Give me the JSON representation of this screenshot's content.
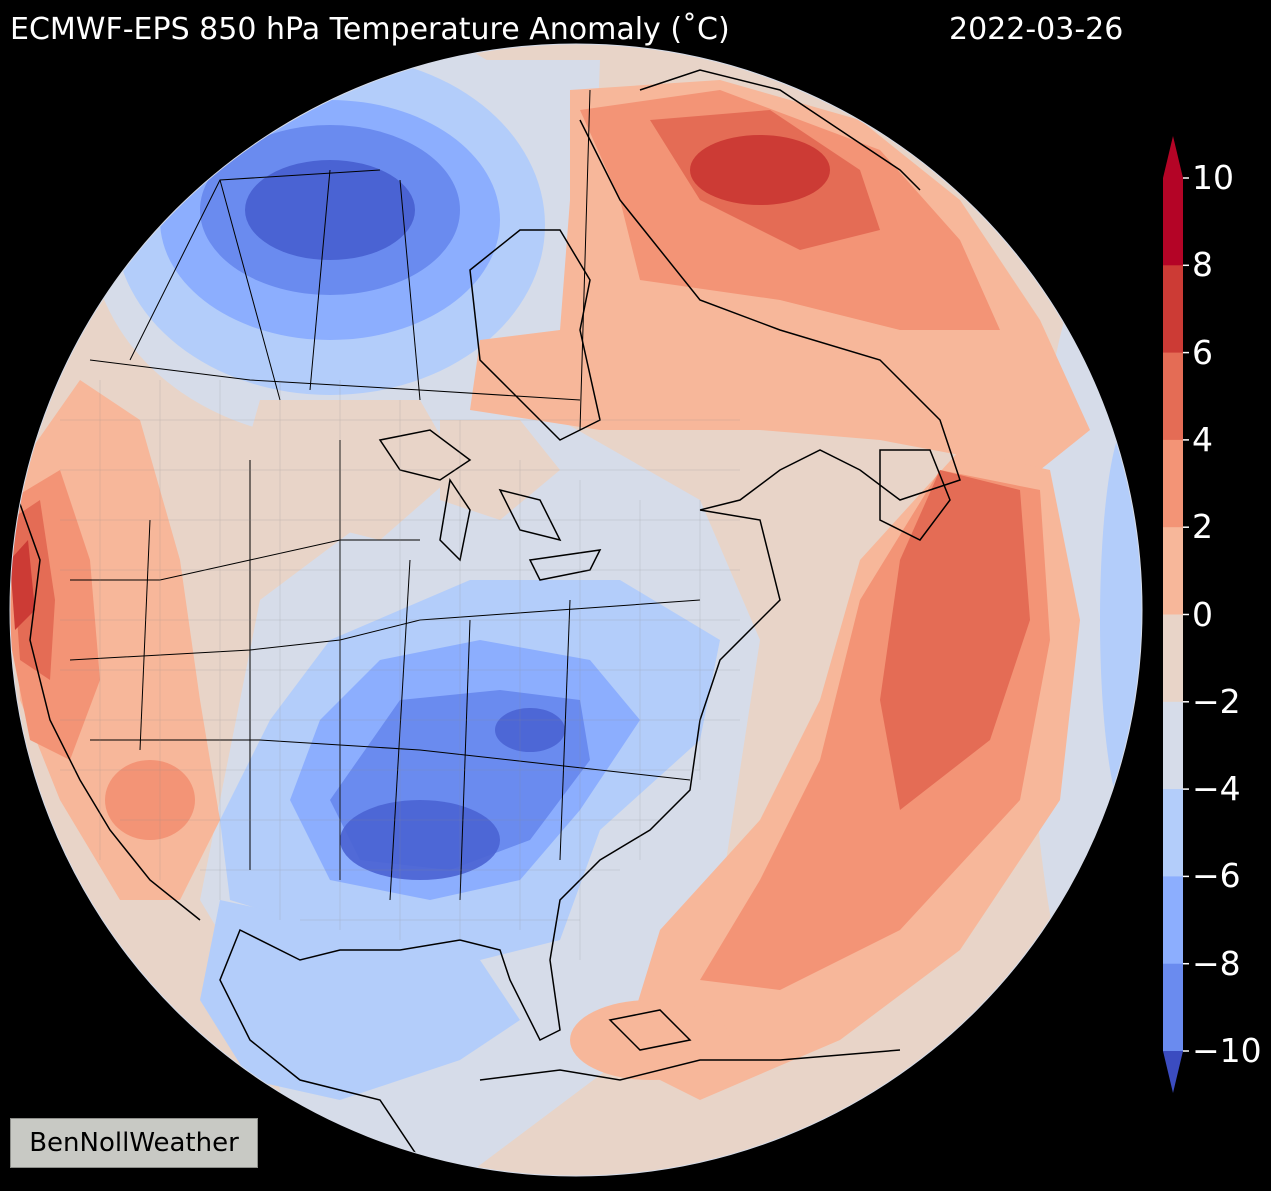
{
  "title": "ECMWF-EPS 850 hPa Temperature Anomaly (˚C)",
  "date": "2022-03-26",
  "watermark": "BenNollWeather",
  "colorbar": {
    "ticks": [
      "10",
      "8",
      "6",
      "4",
      "2",
      "0",
      "−2",
      "−4",
      "−6",
      "−8",
      "−10"
    ],
    "colors": [
      "#b40426",
      "#cc3b35",
      "#e46c55",
      "#f39476",
      "#f7b79a",
      "#e8d4c8",
      "#d6dce9",
      "#b3cdfa",
      "#8caefe",
      "#6a8bef",
      "#4a63d3"
    ],
    "extend_high_color": "#b40426",
    "extend_low_color": "#3b4cc0"
  },
  "map": {
    "projection": "orthographic",
    "anomaly_colors": {
      "ocean_edge": "#d6dce9",
      "neutral": "#e8d4c8",
      "warm2": "#f7b79a",
      "warm4": "#f39476",
      "warm6": "#e46c55",
      "warm8": "#cc3b35",
      "cold2": "#b3cdfa",
      "cold4": "#8caefe",
      "cold6": "#6a8bef",
      "cold8": "#4a63d3"
    }
  }
}
